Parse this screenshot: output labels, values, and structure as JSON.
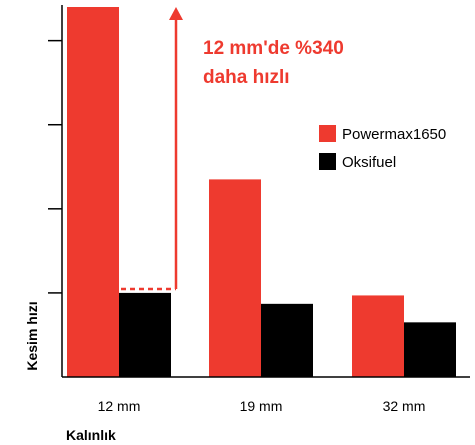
{
  "chart_data": {
    "type": "bar",
    "categories": [
      "12 mm",
      "19 mm",
      "32 mm"
    ],
    "series": [
      {
        "name": "Powermax1650",
        "color": "#ee3a2f",
        "values": [
          4.4,
          2.35,
          0.97
        ]
      },
      {
        "name": "Oksifuel",
        "color": "#000000",
        "values": [
          1.0,
          0.87,
          0.65
        ]
      }
    ],
    "xlabel": "Kalınlık",
    "ylabel": "Kesim hızı",
    "ylim": [
      0,
      4.4
    ],
    "y_ticks": [
      1,
      2,
      3,
      4
    ],
    "y_tick_labels_shown": false,
    "grid": false,
    "legend_position": "right",
    "annotation": {
      "line1": "12 mm'de %340",
      "line2": "daha hızlı",
      "color": "#ee3a2f"
    }
  }
}
